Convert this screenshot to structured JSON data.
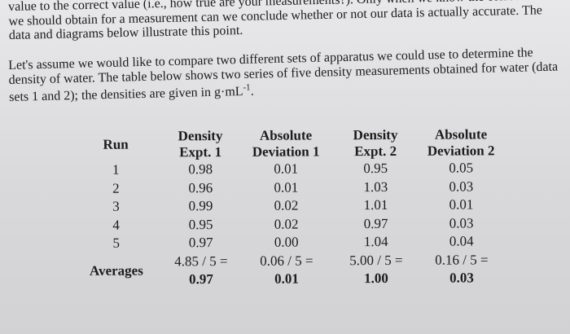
{
  "paragraph1": "value to the correct value (i.e., how true are your measurements?). Only when we know the correct value we should obtain for a measurement can we conclude whether or not our data is actually accurate. The data and diagrams below illustrate this point.",
  "paragraph2": "Let's assume we would like to compare two different sets of apparatus we could use to determine the density of water. The table below shows two series of five density measurements obtained for water (data sets 1 and 2); the densities are given in g·mL-1.",
  "table": {
    "headers": {
      "run": "Run",
      "density1_line1": "Density",
      "density1_line2": "Expt. 1",
      "abs1_line1": "Absolute",
      "abs1_line2": "Deviation 1",
      "density2_line1": "Density",
      "density2_line2": "Expt. 2",
      "abs2_line1": "Absolute",
      "abs2_line2": "Deviation 2"
    },
    "rows": [
      {
        "run": "1",
        "d1": "0.98",
        "a1": "0.01",
        "d2": "0.95",
        "a2": "0.05"
      },
      {
        "run": "2",
        "d1": "0.96",
        "a1": "0.01",
        "d2": "1.03",
        "a2": "0.03"
      },
      {
        "run": "3",
        "d1": "0.99",
        "a1": "0.02",
        "d2": "1.01",
        "a2": "0.01"
      },
      {
        "run": "4",
        "d1": "0.95",
        "a1": "0.02",
        "d2": "0.97",
        "a2": "0.03"
      },
      {
        "run": "5",
        "d1": "0.97",
        "a1": "0.00",
        "d2": "1.04",
        "a2": "0.04"
      }
    ],
    "averages": {
      "label": "Averages",
      "d1_calc": "4.85 / 5 =",
      "d1_result": "0.97",
      "a1_calc": "0.06 / 5 =",
      "a1_result": "0.01",
      "d2_calc": "5.00 / 5 =",
      "d2_result": "1.00",
      "a2_calc": "0.16 / 5 =",
      "a2_result": "0.03"
    }
  }
}
